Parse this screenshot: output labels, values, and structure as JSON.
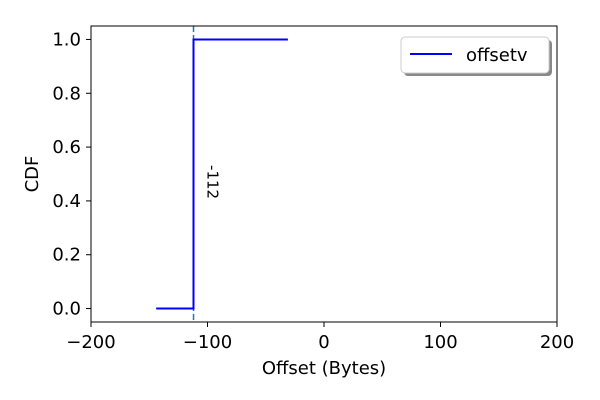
{
  "chart_data": {
    "type": "line",
    "xlabel": "Offset (Bytes)",
    "ylabel": "CDF",
    "xlim": [
      -200,
      200
    ],
    "ylim": [
      -0.05,
      1.05
    ],
    "x_ticks": [
      -200,
      -100,
      0,
      100,
      200
    ],
    "x_tick_labels": [
      "−200",
      "−100",
      "0",
      "100",
      "200"
    ],
    "y_ticks": [
      0.0,
      0.2,
      0.4,
      0.6,
      0.8,
      1.0
    ],
    "y_tick_labels": [
      "0.0",
      "0.2",
      "0.4",
      "0.6",
      "0.8",
      "1.0"
    ],
    "grid": false,
    "legend_position": "top-right",
    "series": [
      {
        "name": "offsetv",
        "color": "#0000ff",
        "style": "step",
        "x": [
          -144,
          -112,
          -112,
          -31
        ],
        "y": [
          0.0,
          0.0,
          1.0,
          1.0
        ]
      }
    ],
    "reference_line": {
      "x": -112,
      "orientation": "vertical",
      "style": "dashed",
      "color": "#1f77b4",
      "label": "-112"
    }
  }
}
